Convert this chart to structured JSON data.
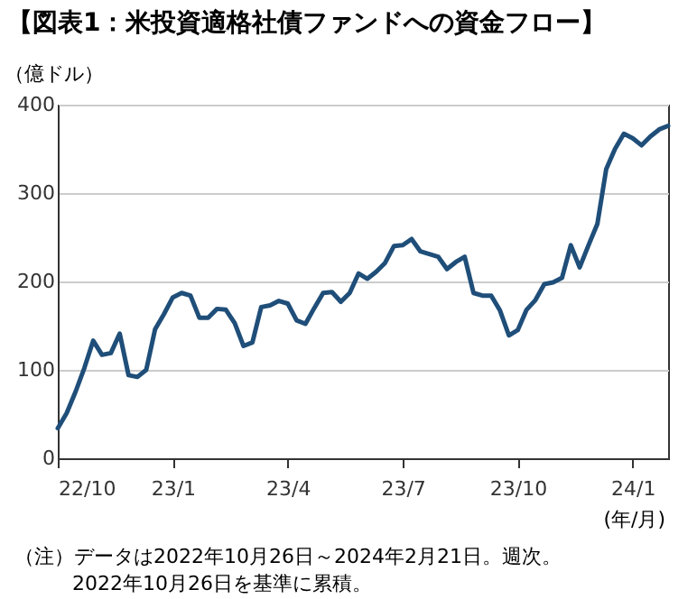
{
  "chart_data": {
    "type": "line",
    "title": "【図表1：米投資適格社債ファンドへの資金フロー】",
    "ylabel": "（億ドル）",
    "xlabel": "(年/月)",
    "annotations": [
      "（注）データは2022年10月26日～2024年2月21日。週次。",
      "2022年10月26日を基準に累積。"
    ],
    "x": [
      "2022-10-26",
      "2022-11-02",
      "2022-11-09",
      "2022-11-16",
      "2022-11-23",
      "2022-11-30",
      "2022-12-07",
      "2022-12-14",
      "2022-12-21",
      "2022-12-28",
      "2023-01-04",
      "2023-01-11",
      "2023-01-18",
      "2023-01-25",
      "2023-02-01",
      "2023-02-08",
      "2023-02-15",
      "2023-02-22",
      "2023-03-01",
      "2023-03-08",
      "2023-03-15",
      "2023-03-22",
      "2023-03-29",
      "2023-04-05",
      "2023-04-12",
      "2023-04-19",
      "2023-04-26",
      "2023-05-03",
      "2023-05-10",
      "2023-05-17",
      "2023-05-24",
      "2023-05-31",
      "2023-06-07",
      "2023-06-14",
      "2023-06-21",
      "2023-06-28",
      "2023-07-05",
      "2023-07-12",
      "2023-07-19",
      "2023-07-26",
      "2023-08-02",
      "2023-08-09",
      "2023-08-16",
      "2023-08-23",
      "2023-08-30",
      "2023-09-06",
      "2023-09-13",
      "2023-09-20",
      "2023-09-27",
      "2023-10-04",
      "2023-10-11",
      "2023-10-18",
      "2023-10-25",
      "2023-11-01",
      "2023-11-08",
      "2023-11-15",
      "2023-11-22",
      "2023-11-29",
      "2023-12-06",
      "2023-12-13",
      "2023-12-20",
      "2023-12-27",
      "2024-01-03",
      "2024-01-10",
      "2024-01-17",
      "2024-01-24",
      "2024-01-31",
      "2024-02-07",
      "2024-02-14",
      "2024-02-21"
    ],
    "series": [
      {
        "color": "#1f4e79",
        "values": [
          34,
          51,
          75,
          102,
          133,
          117,
          119,
          141,
          94,
          92,
          100,
          146,
          163,
          182,
          187,
          184,
          159,
          159,
          169,
          168,
          153,
          127,
          131,
          171,
          173,
          178,
          175,
          156,
          152,
          170,
          187,
          188,
          177,
          187,
          209,
          203,
          211,
          221,
          240,
          241,
          248,
          234,
          231,
          228,
          214,
          222,
          228,
          187,
          184,
          184,
          167,
          139,
          145,
          168,
          179,
          197,
          199,
          204,
          241,
          216,
          241,
          265,
          327,
          350,
          367,
          362,
          354,
          364,
          372,
          376
        ]
      }
    ],
    "xlim": [
      "2022-10-26",
      "2024-02-21"
    ],
    "xticks": [
      {
        "value": "2022-10-26",
        "label": "22/10"
      },
      {
        "value": "2023-01-25",
        "label": "23/1"
      },
      {
        "value": "2023-04-26",
        "label": "23/4"
      },
      {
        "value": "2023-07-26",
        "label": "23/7"
      },
      {
        "value": "2023-10-25",
        "label": "23/10"
      },
      {
        "value": "2024-01-24",
        "label": "24/1"
      }
    ],
    "ylim": [
      0,
      400
    ],
    "yticks": [
      0,
      100,
      200,
      300,
      400
    ],
    "grid": "y",
    "marker": "none",
    "line_style": "solid"
  }
}
